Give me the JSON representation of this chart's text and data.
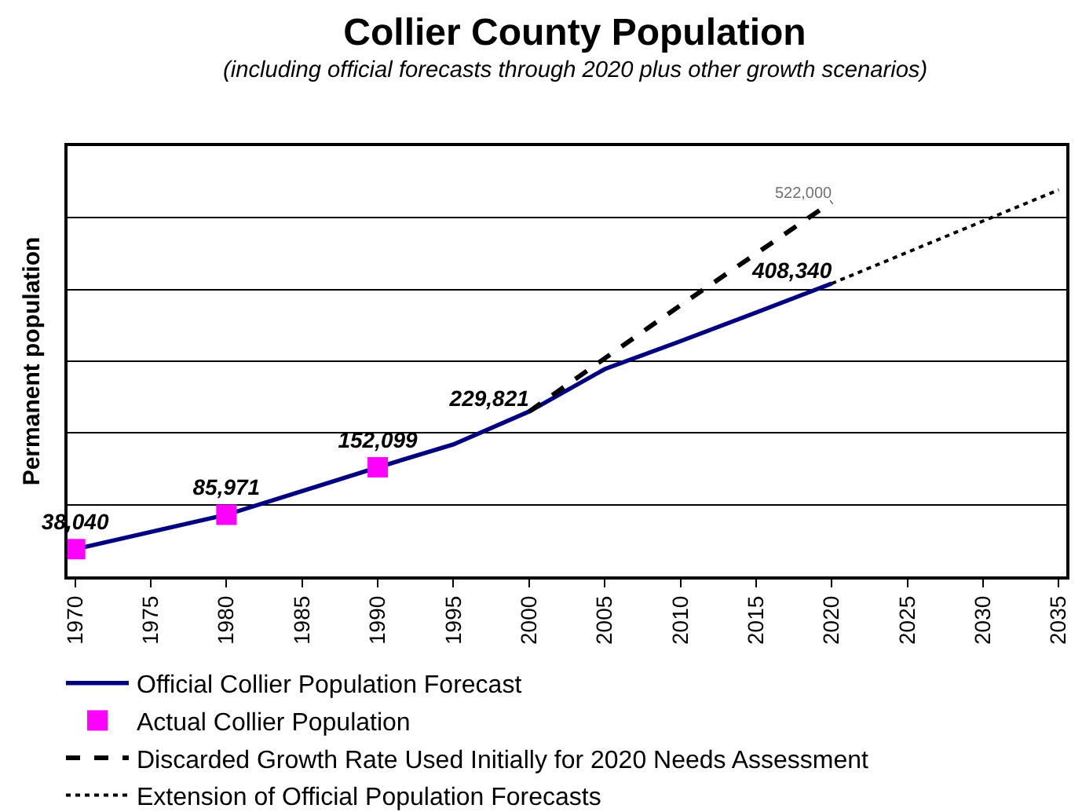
{
  "chart_data": {
    "type": "line",
    "title": "Collier County Population",
    "subtitle": "(including official forecasts through 2020 plus other growth scenarios)",
    "ylabel": "Permanent population",
    "xlim": [
      1969.5,
      2035.5
    ],
    "xticks": [
      1970,
      1975,
      1980,
      1985,
      1990,
      1995,
      2000,
      2005,
      2010,
      2015,
      2020,
      2025,
      2030,
      2035
    ],
    "ylim": [
      0,
      600000
    ],
    "yticks": [
      {
        "value": 100000,
        "label": null
      },
      {
        "value": 200000,
        "label": null
      },
      {
        "value": 300000,
        "label": null
      },
      {
        "value": 400000,
        "label": null
      },
      {
        "value": 500000,
        "label": null
      }
    ],
    "tick_labels": "x",
    "grid": "y",
    "legend": "bottom",
    "series": [
      {
        "name": "Official Collier Population Forecast",
        "color": "#000080",
        "line_style": "solid",
        "x": [
          1970,
          1975,
          1980,
          1985,
          1990,
          1995,
          2000,
          2005,
          2010,
          2015,
          2020
        ],
        "values": [
          38040,
          62000,
          85971,
          119000,
          152099,
          184000,
          229821,
          289000,
          328000,
          368000,
          408340
        ],
        "value_labels": [
          null,
          null,
          null,
          null,
          null,
          null,
          "229,821",
          null,
          null,
          null,
          "408,340"
        ]
      },
      {
        "name": "Actual Collier Population",
        "type": "scatter",
        "color": "#ff00ff",
        "marker": "square",
        "x": [
          1970,
          1980,
          1990
        ],
        "values": [
          38040,
          85971,
          152099
        ],
        "value_labels": [
          "38,040",
          "85,971",
          "152,099"
        ]
      },
      {
        "name": "Discarded Growth Rate Used Initially for 2020 Needs Assessment",
        "color": "#000000",
        "line_style": "dashed",
        "x": [
          2000,
          2005,
          2010,
          2015,
          2020
        ],
        "values": [
          229821,
          304000,
          378000,
          450000,
          522000
        ],
        "value_labels": [
          null,
          null,
          null,
          null,
          "522,000"
        ]
      },
      {
        "name": "Extension of Official Population Forecasts",
        "color": "#000000",
        "line_style": "dotted",
        "x": [
          2020,
          2035
        ],
        "values": [
          408340,
          539000
        ]
      }
    ]
  }
}
